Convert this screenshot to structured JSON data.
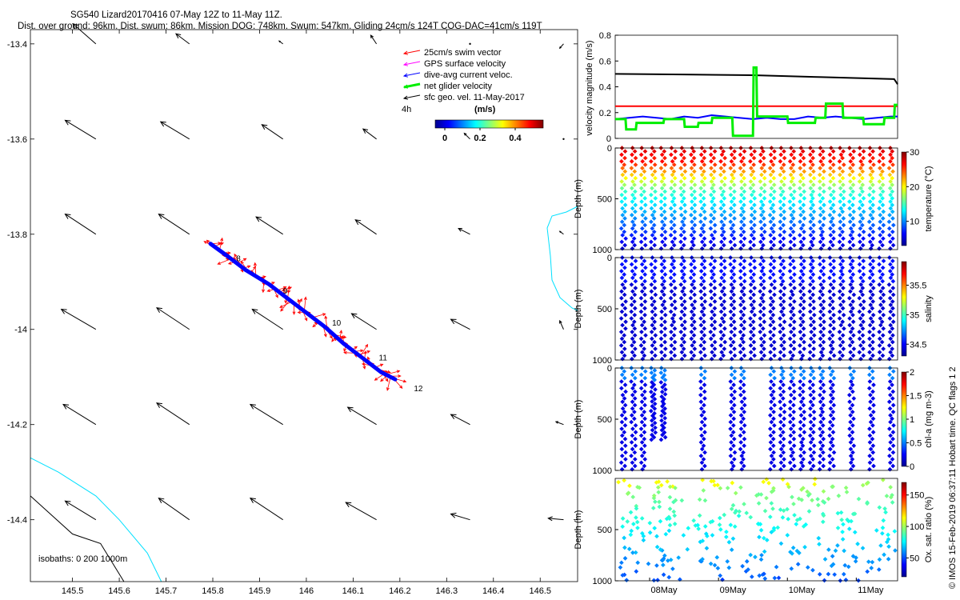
{
  "title_line1": "SG540 Lizard20170416 07-May 12Z to 11-May 11Z.",
  "title_line2": "Dist. over ground: 96km. Dist. swum: 86km. Mission DOG: 748km. Swum: 547km. Gliding 24cm/s 124T COG-DAC=41cm/s 119T",
  "credit": "© IMOS 15-Feb-2019 06:37:11 Hobart time. QC flags 1  2",
  "colors": {
    "swim": "#ff0000",
    "gps": "#ff00ff",
    "dac": "#0000ff",
    "net": "#00ee00",
    "sfc": "#000000",
    "isobath200": "#00e0ff",
    "isobath1000": "#000000",
    "vel_black": "#000000",
    "vel_red": "#ff0000",
    "vel_blue": "#0000ff",
    "vel_green": "#00ee00"
  },
  "chart_data": [
    {
      "type": "map",
      "x_ticks": [
        "145.5",
        "145.6",
        "145.7",
        "145.8",
        "145.9",
        "146",
        "146.1",
        "146.2",
        "146.3",
        "146.4",
        "146.5"
      ],
      "y_ticks": [
        "-13.4",
        "-13.6",
        "-13.8",
        "-14",
        "-14.2",
        "-14.4"
      ],
      "xlim": [
        145.41,
        146.58
      ],
      "ylim": [
        -14.53,
        -13.37
      ],
      "legend": [
        "25cm/s swim vector",
        "GPS surface velocity",
        "dive-avg current veloc.",
        "net glider velocity",
        "sfc geo. vel. 11-May-2017"
      ],
      "legend_extra": "4h",
      "colorbar_label": "(m/s)",
      "colorbar_ticks": [
        "0",
        "0.2",
        "0.4"
      ],
      "isobath_label": "isobaths: 0   200  1000m",
      "track": [
        [
          145.795,
          -13.82
        ],
        [
          145.83,
          -13.845
        ],
        [
          145.87,
          -13.875
        ],
        [
          145.92,
          -13.905
        ],
        [
          145.96,
          -13.935
        ],
        [
          146.0,
          -13.965
        ],
        [
          146.04,
          -13.995
        ],
        [
          146.08,
          -14.03
        ],
        [
          146.12,
          -14.06
        ],
        [
          146.16,
          -14.09
        ],
        [
          146.19,
          -14.105
        ]
      ],
      "day_marks": [
        {
          "label": "8",
          "lon": 145.85,
          "lat": -13.857
        },
        {
          "label": "9",
          "lon": 145.95,
          "lat": -13.925
        },
        {
          "label": "10",
          "lon": 146.055,
          "lat": -13.992
        },
        {
          "label": "11",
          "lon": 146.155,
          "lat": -14.065
        },
        {
          "label": "12",
          "lon": 146.23,
          "lat": -14.13
        }
      ],
      "sfc_lons": [
        145.55,
        145.75,
        145.95,
        146.15,
        146.35,
        146.55
      ],
      "sfc_lats": [
        -13.4,
        -13.6,
        -13.8,
        -14.0,
        -14.2,
        -14.4
      ],
      "sfc_arrows": [
        [
          [
            -0.6,
            0.7
          ],
          [
            -0.35,
            0.35
          ],
          [
            -0.1,
            0.1
          ],
          [
            -0.15,
            0.3
          ],
          [
            0,
            0
          ],
          [
            -0.1,
            -0.15
          ]
        ],
        [
          [
            -0.8,
            0.65
          ],
          [
            -0.75,
            0.6
          ],
          [
            -0.55,
            0.5
          ],
          [
            -0.35,
            0.35
          ],
          [
            -0.15,
            0.2
          ],
          [
            0,
            0
          ]
        ],
        [
          [
            -0.8,
            0.7
          ],
          [
            -0.8,
            0.7
          ],
          [
            -0.7,
            0.6
          ],
          [
            -0.55,
            0.5
          ],
          [
            -0.3,
            0.2
          ],
          [
            -0.1,
            0.1
          ]
        ],
        [
          [
            -0.9,
            0.7
          ],
          [
            -0.85,
            0.75
          ],
          [
            -0.8,
            0.7
          ],
          [
            -0.65,
            0.55
          ],
          [
            -0.5,
            0.35
          ],
          [
            -0.1,
            0.3
          ]
        ],
        [
          [
            -0.85,
            0.7
          ],
          [
            -0.85,
            0.75
          ],
          [
            -0.85,
            0.7
          ],
          [
            -0.75,
            0.6
          ],
          [
            -0.5,
            0.35
          ],
          [
            -0.2,
            0.1
          ]
        ],
        [
          [
            -0.8,
            0.65
          ],
          [
            -0.8,
            0.75
          ],
          [
            -0.85,
            0.75
          ],
          [
            -0.8,
            0.6
          ],
          [
            -0.5,
            0.2
          ],
          [
            -0.4,
            0.05
          ]
        ]
      ]
    },
    {
      "type": "line",
      "ylabel": "velocity magnitude (m/s)",
      "ylim": [
        0,
        0.8
      ],
      "y_ticks": [
        "0",
        "0.2",
        "0.4",
        "0.6",
        "0.8"
      ],
      "xlim": [
        7.5,
        11.6
      ],
      "series": [
        {
          "name": "black",
          "x": [
            7.5,
            8.5,
            9.5,
            10.5,
            11.55,
            11.6
          ],
          "y": [
            0.5,
            0.495,
            0.49,
            0.475,
            0.46,
            0.42
          ]
        },
        {
          "name": "red",
          "x": [
            7.5,
            11.6
          ],
          "y": [
            0.25,
            0.25
          ]
        },
        {
          "name": "blue",
          "x": [
            7.5,
            7.7,
            7.9,
            8.1,
            8.3,
            8.5,
            8.7,
            8.9,
            9.1,
            9.3,
            9.5,
            9.7,
            9.9,
            10.1,
            10.3,
            10.5,
            10.7,
            10.9,
            11.1,
            11.3,
            11.5,
            11.6
          ],
          "y": [
            0.15,
            0.16,
            0.17,
            0.16,
            0.15,
            0.17,
            0.16,
            0.18,
            0.17,
            0.16,
            0.15,
            0.16,
            0.15,
            0.15,
            0.17,
            0.16,
            0.17,
            0.16,
            0.15,
            0.16,
            0.17,
            0.17
          ]
        },
        {
          "name": "green",
          "x": [
            7.5,
            7.65,
            7.66,
            7.8,
            7.81,
            8.2,
            8.21,
            8.5,
            8.51,
            8.7,
            8.71,
            8.9,
            8.91,
            9.2,
            9.21,
            9.5,
            9.51,
            9.55,
            9.56,
            10.0,
            10.01,
            10.4,
            10.41,
            10.55,
            10.56,
            10.8,
            10.81,
            11.1,
            11.11,
            11.4,
            11.41,
            11.55,
            11.56,
            11.6
          ],
          "y": [
            0.15,
            0.15,
            0.07,
            0.07,
            0.12,
            0.12,
            0.15,
            0.15,
            0.09,
            0.09,
            0.12,
            0.12,
            0.16,
            0.16,
            0.02,
            0.02,
            0.55,
            0.55,
            0.17,
            0.17,
            0.12,
            0.12,
            0.16,
            0.16,
            0.27,
            0.27,
            0.16,
            0.16,
            0.11,
            0.11,
            0.16,
            0.16,
            0.26,
            0.26
          ]
        }
      ]
    },
    {
      "type": "scatter",
      "ylabel": "Depth (m)",
      "ylim": [
        1000,
        0
      ],
      "y_ticks": [
        "0",
        "500",
        "1000"
      ],
      "colorbar_label": "temperature (°C)",
      "colorbar_ticks": [
        "10",
        "20",
        "30"
      ],
      "clim": [
        3,
        30
      ]
    },
    {
      "type": "scatter",
      "ylabel": "Depth (m)",
      "ylim": [
        1000,
        0
      ],
      "y_ticks": [
        "0",
        "500",
        "1000"
      ],
      "colorbar_label": "salinity",
      "colorbar_ticks": [
        "34.5",
        "35",
        "35.5"
      ],
      "clim": [
        34.3,
        35.9
      ]
    },
    {
      "type": "scatter",
      "ylabel": "Depth (m)",
      "ylim": [
        1000,
        0
      ],
      "y_ticks": [
        "0",
        "500",
        "1000"
      ],
      "colorbar_label": "chl-a (mg m-3)",
      "colorbar_ticks": [
        "0",
        "0.5",
        "1",
        "1.5",
        "2"
      ],
      "clim": [
        0,
        2
      ]
    },
    {
      "type": "scatter",
      "ylabel": "Depth (m)",
      "ylim": [
        1000,
        0
      ],
      "y_ticks": [
        "500",
        "1000"
      ],
      "colorbar_label": "Ox. sat. ratio (%)",
      "colorbar_ticks": [
        "50",
        "100",
        "150"
      ],
      "clim": [
        20,
        170
      ],
      "x_ticks": [
        "08May",
        "09May",
        "10May",
        "11May"
      ]
    }
  ]
}
